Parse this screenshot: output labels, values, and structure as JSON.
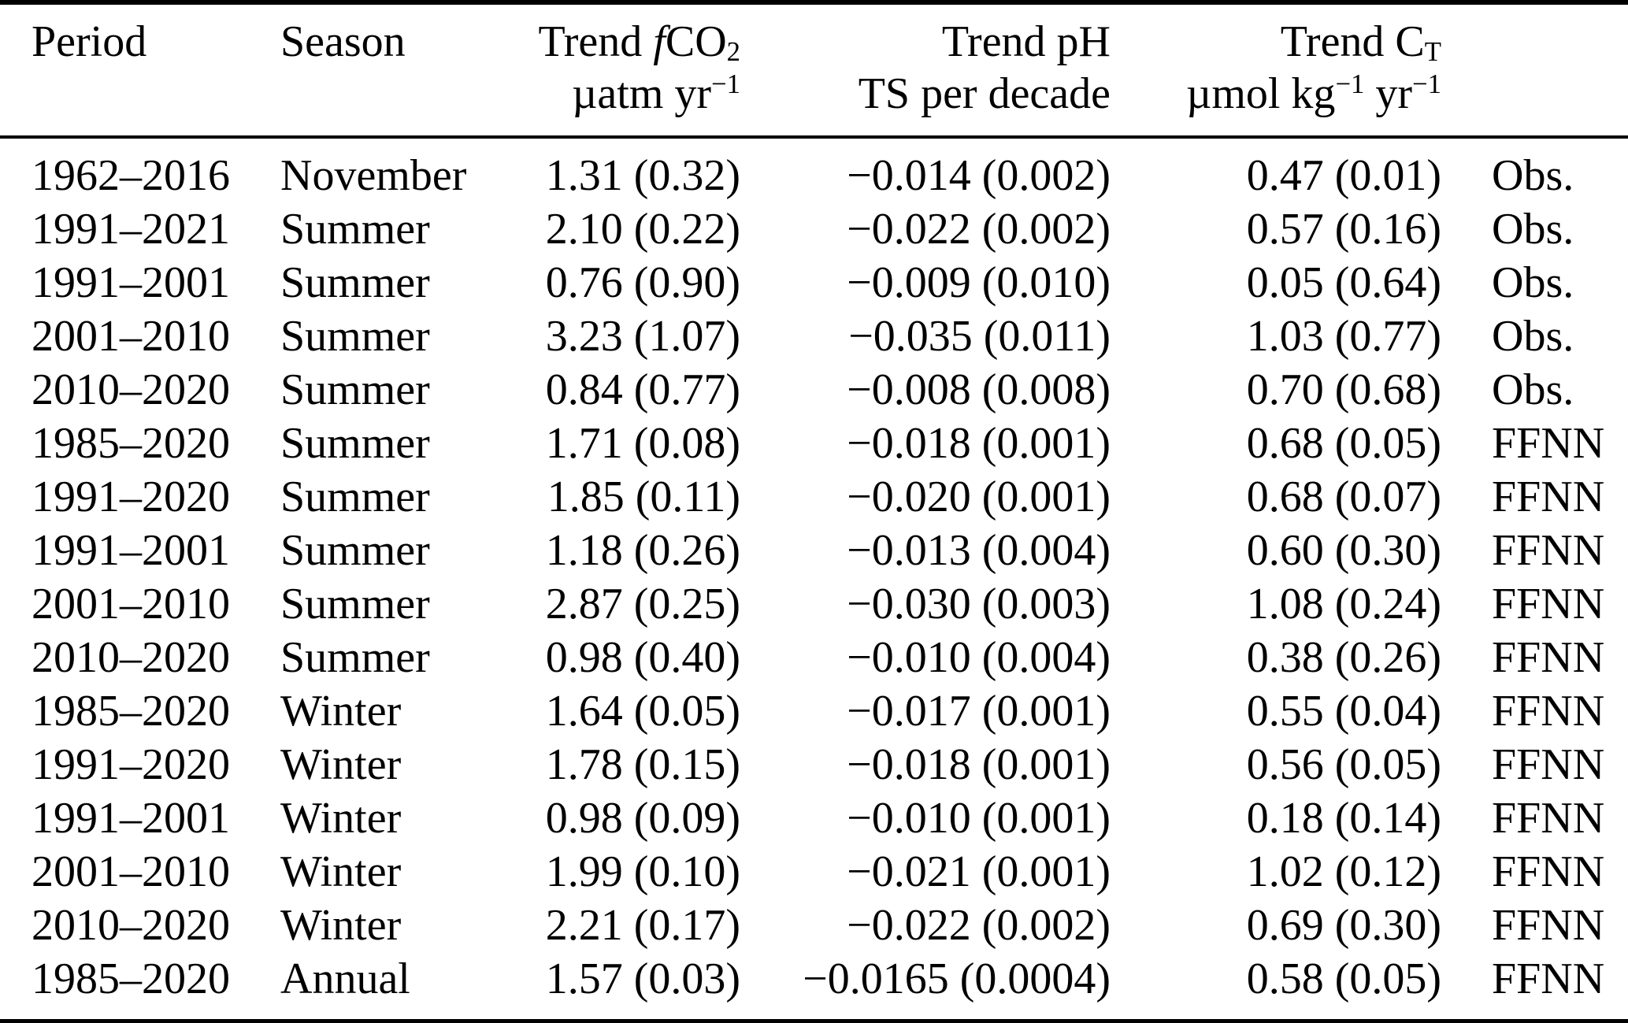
{
  "table": {
    "headers": {
      "period": "Period",
      "season": "Season",
      "fco2": {
        "prefix": "Trend ",
        "f": "f",
        "base": "CO",
        "sub": "2",
        "unit_base": "µatm yr",
        "unit_exp": "−1"
      },
      "ph": {
        "line1": "Trend pH",
        "line2": "TS per decade"
      },
      "ct": {
        "prefix": "Trend C",
        "sub": "T",
        "unit1": "µmol kg",
        "exp1": "−1",
        "unit2": " yr",
        "exp2": "−1"
      },
      "source": ""
    },
    "rows": [
      {
        "period": "1962–2016",
        "season": "November",
        "fco2": "1.31 (0.32)",
        "ph": "−0.014 (0.002)",
        "ct": "0.47 (0.01)",
        "source": "Obs."
      },
      {
        "period": "1991–2021",
        "season": "Summer",
        "fco2": "2.10 (0.22)",
        "ph": "−0.022 (0.002)",
        "ct": "0.57 (0.16)",
        "source": "Obs."
      },
      {
        "period": "1991–2001",
        "season": "Summer",
        "fco2": "0.76 (0.90)",
        "ph": "−0.009 (0.010)",
        "ct": "0.05 (0.64)",
        "source": "Obs."
      },
      {
        "period": "2001–2010",
        "season": "Summer",
        "fco2": "3.23 (1.07)",
        "ph": "−0.035 (0.011)",
        "ct": "1.03 (0.77)",
        "source": "Obs."
      },
      {
        "period": "2010–2020",
        "season": "Summer",
        "fco2": "0.84 (0.77)",
        "ph": "−0.008 (0.008)",
        "ct": "0.70 (0.68)",
        "source": "Obs."
      },
      {
        "period": "1985–2020",
        "season": "Summer",
        "fco2": "1.71 (0.08)",
        "ph": "−0.018 (0.001)",
        "ct": "0.68 (0.05)",
        "source": "FFNN"
      },
      {
        "period": "1991–2020",
        "season": "Summer",
        "fco2": "1.85 (0.11)",
        "ph": "−0.020 (0.001)",
        "ct": "0.68 (0.07)",
        "source": "FFNN"
      },
      {
        "period": "1991–2001",
        "season": "Summer",
        "fco2": "1.18 (0.26)",
        "ph": "−0.013 (0.004)",
        "ct": "0.60 (0.30)",
        "source": "FFNN"
      },
      {
        "period": "2001–2010",
        "season": "Summer",
        "fco2": "2.87 (0.25)",
        "ph": "−0.030 (0.003)",
        "ct": "1.08 (0.24)",
        "source": "FFNN"
      },
      {
        "period": "2010–2020",
        "season": "Summer",
        "fco2": "0.98 (0.40)",
        "ph": "−0.010 (0.004)",
        "ct": "0.38 (0.26)",
        "source": "FFNN"
      },
      {
        "period": "1985–2020",
        "season": "Winter",
        "fco2": "1.64 (0.05)",
        "ph": "−0.017 (0.001)",
        "ct": "0.55 (0.04)",
        "source": "FFNN"
      },
      {
        "period": "1991–2020",
        "season": "Winter",
        "fco2": "1.78 (0.15)",
        "ph": "−0.018 (0.001)",
        "ct": "0.56 (0.05)",
        "source": "FFNN"
      },
      {
        "period": "1991–2001",
        "season": "Winter",
        "fco2": "0.98 (0.09)",
        "ph": "−0.010 (0.001)",
        "ct": "0.18 (0.14)",
        "source": "FFNN"
      },
      {
        "period": "2001–2010",
        "season": "Winter",
        "fco2": "1.99 (0.10)",
        "ph": "−0.021 (0.001)",
        "ct": "1.02 (0.12)",
        "source": "FFNN"
      },
      {
        "period": "2010–2020",
        "season": "Winter",
        "fco2": "2.21 (0.17)",
        "ph": "−0.022 (0.002)",
        "ct": "0.69 (0.30)",
        "source": "FFNN"
      },
      {
        "period": "1985–2020",
        "season": "Annual",
        "fco2": "1.57 (0.03)",
        "ph": "−0.0165 (0.0004)",
        "ct": "0.58 (0.05)",
        "source": "FFNN"
      }
    ]
  }
}
